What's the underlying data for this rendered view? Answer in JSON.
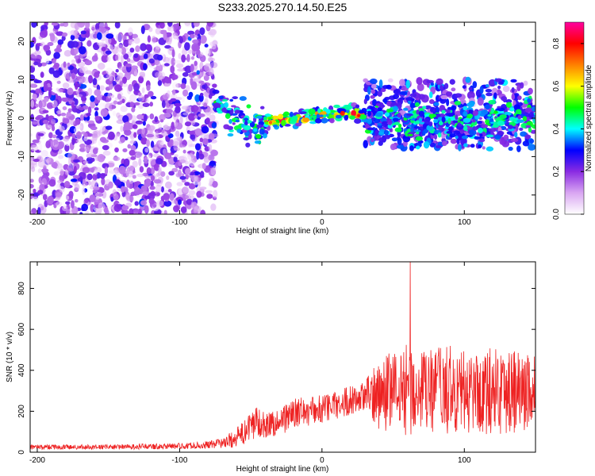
{
  "figure": {
    "title": "S233.2025.270.14.50.E25"
  },
  "chart_data": [
    {
      "type": "heatmap",
      "description_of_content": "spectrogram: frequency vs height of straight line",
      "xlabel": "Height of straight line (km)",
      "ylabel": "Frequency (Hz)",
      "xlim": [
        -205,
        150
      ],
      "ylim": [
        -25,
        25
      ],
      "xticks": [
        -200,
        -100,
        0,
        100
      ],
      "yticks": [
        -20,
        -10,
        0,
        10,
        20
      ],
      "colorbar": {
        "label": "Normalized spectral amplitude",
        "range": [
          0.0,
          0.9
        ],
        "ticks": [
          0.0,
          0.2,
          0.4,
          0.6,
          0.8
        ],
        "tick_labels": [
          "0.0",
          "0.2",
          "0.4",
          "0.6",
          "0.8"
        ],
        "colormap": [
          "#ffffff",
          "#d9a6f2",
          "#8a2be2",
          "#0000ff",
          "#00ffff",
          "#00ff00",
          "#ffff00",
          "#ff8000",
          "#ff0000",
          "#ff00a0"
        ]
      },
      "ridge": {
        "x": [
          -75,
          -60,
          -50,
          -45,
          -40,
          -30,
          -20,
          -10,
          0,
          10,
          20,
          30,
          40,
          60,
          80,
          100,
          120,
          140,
          150
        ],
        "y": [
          4,
          0,
          -2,
          -3,
          -1,
          -0.5,
          -0.2,
          0.3,
          0.8,
          1.3,
          1.6,
          0.5,
          -0.5,
          -0.8,
          -0.3,
          -1.0,
          -0.5,
          1.0,
          1.5
        ],
        "strong_amplitude_range_km": [
          -40,
          30
        ],
        "peak_amplitude": 0.9
      },
      "noise_regions": [
        {
          "x_range": [
            -205,
            -75
          ],
          "y_range": [
            -25,
            25
          ],
          "mean_amplitude": 0.15
        },
        {
          "x_range": [
            30,
            150
          ],
          "y_range": [
            -8,
            10
          ],
          "mean_amplitude": 0.25
        }
      ]
    },
    {
      "type": "line",
      "xlabel": "Height of straight line (km)",
      "ylabel": "SNR (10 * v/v)",
      "xlim": [
        -205,
        150
      ],
      "ylim": [
        0,
        930
      ],
      "xticks": [
        -200,
        -100,
        0,
        100
      ],
      "yticks": [
        0,
        200,
        400,
        600,
        800
      ],
      "color": "#ee2222",
      "series": [
        {
          "name": "SNR",
          "x": [
            -205,
            -150,
            -100,
            -80,
            -70,
            -60,
            -50,
            -45,
            -40,
            -30,
            -20,
            -10,
            0,
            10,
            20,
            30,
            40,
            50,
            60,
            70,
            80,
            90,
            100,
            110,
            120,
            130,
            140,
            150
          ],
          "mean": [
            25,
            25,
            30,
            35,
            45,
            70,
            120,
            160,
            130,
            150,
            190,
            200,
            210,
            230,
            255,
            270,
            290,
            300,
            310,
            290,
            300,
            305,
            290,
            295,
            300,
            310,
            300,
            290
          ],
          "noise": [
            10,
            10,
            12,
            15,
            20,
            40,
            60,
            70,
            50,
            60,
            60,
            60,
            60,
            60,
            60,
            60,
            150,
            170,
            190,
            170,
            180,
            180,
            170,
            170,
            180,
            180,
            170,
            160
          ],
          "peak": {
            "x": 62,
            "y": 930
          }
        }
      ]
    }
  ]
}
